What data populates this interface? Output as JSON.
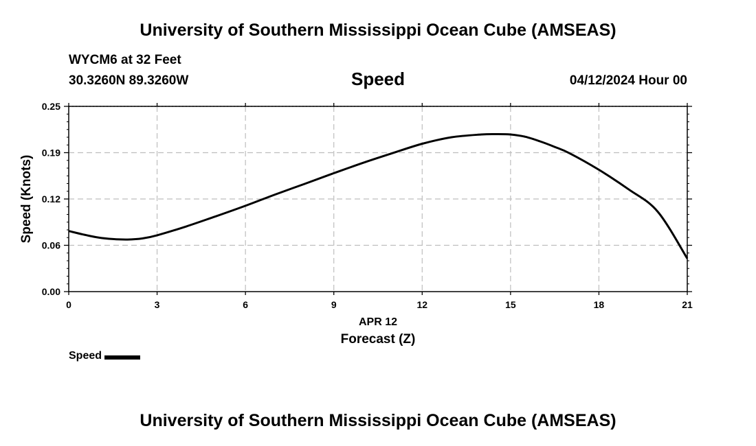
{
  "header": {
    "title": "University of Southern Mississippi Ocean Cube (AMSEAS)",
    "station": "WYCM6 at 32 Feet",
    "coords": "30.3260N  89.3260W",
    "datetime": "04/12/2024 Hour 00"
  },
  "footer": {
    "title": "University of Southern Mississippi Ocean Cube (AMSEAS)"
  },
  "chart_data": {
    "type": "line",
    "title": "Speed",
    "xlabel": "Forecast (Z)",
    "xlabel_date": "APR 12",
    "ylabel": "Speed (Knots)",
    "xlim": [
      0,
      21
    ],
    "ylim": [
      0,
      0.25
    ],
    "x_ticks": [
      0,
      3,
      6,
      9,
      12,
      15,
      18,
      21
    ],
    "x_tick_labels": [
      "0",
      "3",
      "6",
      "9",
      "12",
      "15",
      "18",
      "21"
    ],
    "y_ticks": [
      0,
      0.0625,
      0.125,
      0.1875,
      0.25
    ],
    "y_tick_labels": [
      "0.00",
      "0.06",
      "0.12",
      "0.19",
      "0.25"
    ],
    "grid": true,
    "legend_position": "bottom-left",
    "series": [
      {
        "name": "Speed",
        "color": "#000000",
        "x": [
          0,
          0.5,
          1,
          1.5,
          2,
          2.5,
          3,
          4,
          5,
          6,
          7,
          8,
          9,
          10,
          11,
          12,
          13,
          14,
          14.5,
          15,
          15.5,
          16,
          16.5,
          17,
          18,
          19,
          20,
          21
        ],
        "y": [
          0.0818,
          0.077,
          0.0731,
          0.0709,
          0.0703,
          0.0718,
          0.076,
          0.0881,
          0.1017,
          0.1158,
          0.1309,
          0.1453,
          0.1598,
          0.1739,
          0.1869,
          0.1995,
          0.2083,
          0.212,
          0.2125,
          0.212,
          0.209,
          0.2028,
          0.1953,
          0.1868,
          0.1644,
          0.1382,
          0.1078,
          0.0446
        ]
      }
    ]
  }
}
